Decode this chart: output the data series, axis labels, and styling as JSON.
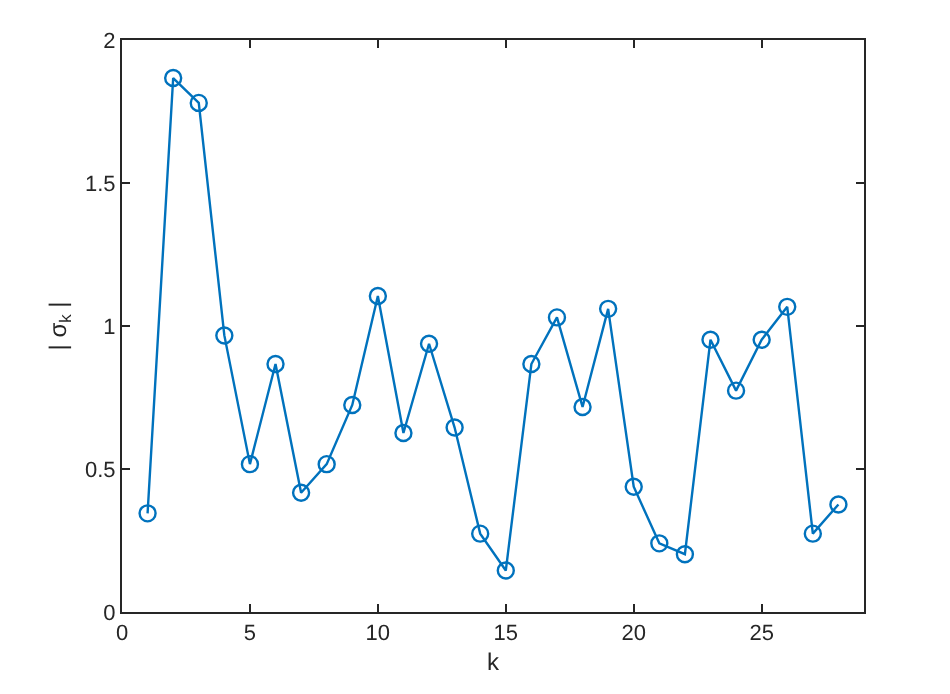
{
  "chart_data": {
    "type": "line",
    "xlabel": "k",
    "ylabel": "| σ$_{k}$ |",
    "x": [
      1,
      2,
      3,
      4,
      5,
      6,
      7,
      8,
      9,
      10,
      11,
      12,
      13,
      14,
      15,
      16,
      17,
      18,
      19,
      20,
      21,
      22,
      23,
      24,
      25,
      26,
      27,
      28
    ],
    "series": [
      {
        "color": "#0072bd",
        "values": [
          0.345,
          1.867,
          1.78,
          0.967,
          0.517,
          0.867,
          0.417,
          0.517,
          0.724,
          1.105,
          0.626,
          0.938,
          0.645,
          0.274,
          0.145,
          0.867,
          1.03,
          0.717,
          1.06,
          0.438,
          0.24,
          0.202,
          0.952,
          0.774,
          0.952,
          1.067,
          0.274,
          0.376
        ]
      }
    ],
    "xlim": [
      0,
      29
    ],
    "xticks": [
      0,
      5,
      10,
      15,
      20,
      25
    ],
    "ylim": [
      0,
      2
    ],
    "yticks": [
      0,
      0.5,
      1,
      1.5,
      2
    ],
    "marker": "circle",
    "line_style": "solid"
  }
}
